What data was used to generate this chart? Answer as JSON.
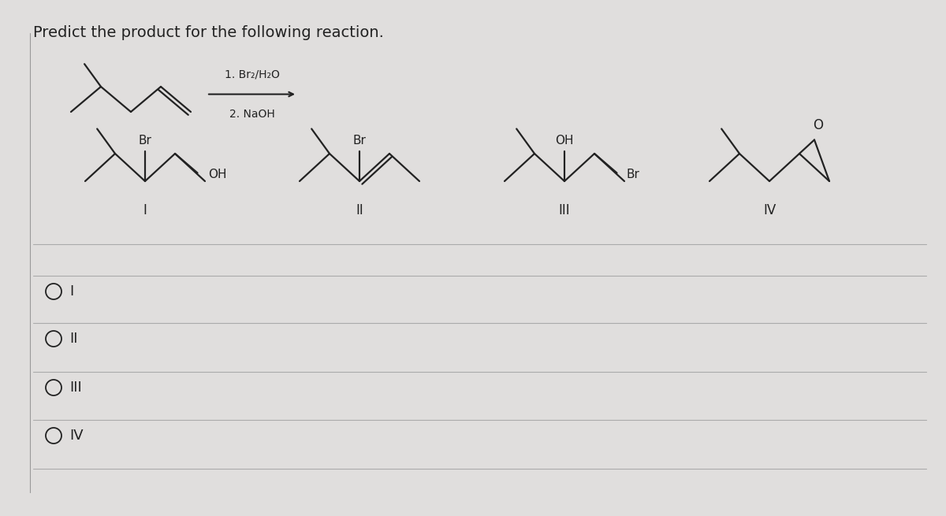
{
  "title": "Predict the product for the following reaction.",
  "reagents_line1": "1. Br₂/H₂O",
  "reagents_line2": "2. NaOH",
  "bg": "#e0dedd",
  "tc": "#222222",
  "title_fs": 14,
  "radio_fs": 13,
  "mol_fs": 11,
  "lw": 1.6
}
